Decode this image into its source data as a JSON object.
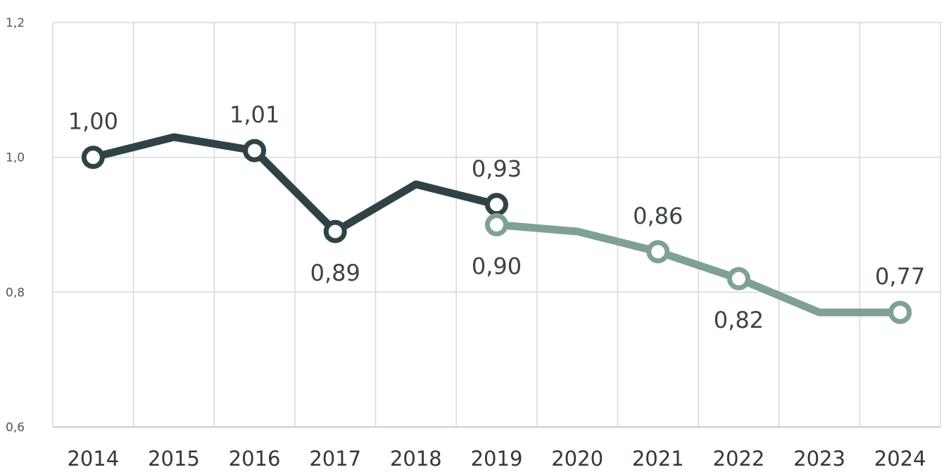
{
  "chart_data": {
    "type": "line",
    "categories": [
      "2014",
      "2015",
      "2016",
      "2017",
      "2018",
      "2019",
      "2020",
      "2021",
      "2022",
      "2023",
      "2024"
    ],
    "series": [
      {
        "color": "#2f4347",
        "points": [
          {
            "x": "2014",
            "y": 1.0,
            "marker": true,
            "label": "1,00",
            "label_pos": "above"
          },
          {
            "x": "2015",
            "y": 1.03,
            "marker": false
          },
          {
            "x": "2016",
            "y": 1.01,
            "marker": true,
            "label": "1,01",
            "label_pos": "above"
          },
          {
            "x": "2017",
            "y": 0.89,
            "marker": true,
            "label": "0,89",
            "label_pos": "below"
          },
          {
            "x": "2018",
            "y": 0.96,
            "marker": false
          },
          {
            "x": "2019",
            "y": 0.93,
            "marker": true,
            "label": "0,93",
            "label_pos": "above"
          }
        ]
      },
      {
        "color": "#7fa096",
        "points": [
          {
            "x": "2019",
            "y": 0.9,
            "marker": true,
            "label": "0,90",
            "label_pos": "below"
          },
          {
            "x": "2020",
            "y": 0.89,
            "marker": false
          },
          {
            "x": "2021",
            "y": 0.86,
            "marker": true,
            "label": "0,86",
            "label_pos": "above"
          },
          {
            "x": "2022",
            "y": 0.82,
            "marker": true,
            "label": "0,82",
            "label_pos": "below"
          },
          {
            "x": "2023",
            "y": 0.77,
            "marker": false
          },
          {
            "x": "2024",
            "y": 0.77,
            "marker": true,
            "label": "0,77",
            "label_pos": "above"
          }
        ]
      }
    ],
    "yticks": [
      {
        "value": 0.6,
        "label": "0,6"
      },
      {
        "value": 0.8,
        "label": "0,8"
      },
      {
        "value": 1.0,
        "label": "1,0"
      },
      {
        "value": 1.2,
        "label": "1,2"
      }
    ],
    "ylim": [
      0.6,
      1.2
    ],
    "grid": true,
    "legend": "none"
  }
}
